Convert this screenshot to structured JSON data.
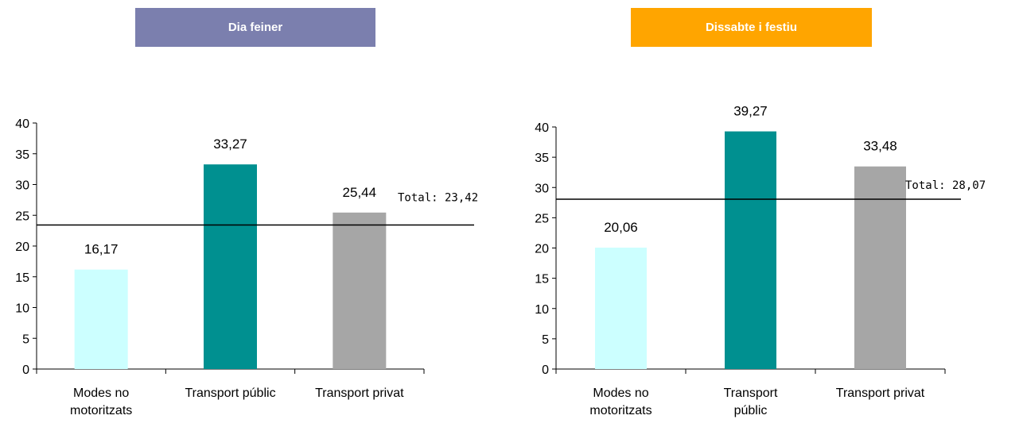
{
  "chart_data": [
    {
      "type": "bar",
      "title": "Dia feiner",
      "title_color": "#7b7fae",
      "categories": [
        "Modes no motoritzats",
        "Transport públic",
        "Transport privat"
      ],
      "category_lines": [
        [
          "Modes no",
          "motoritzats"
        ],
        [
          "Transport públic"
        ],
        [
          "Transport privat"
        ]
      ],
      "values": [
        16.17,
        33.27,
        25.44
      ],
      "data_labels": [
        "16,17",
        "33,27",
        "25,44"
      ],
      "colors": [
        "#ccffff",
        "#009090",
        "#a6a6a6"
      ],
      "ylim": [
        0,
        40
      ],
      "yticks": [
        "0",
        "5",
        "10",
        "15",
        "20",
        "25",
        "30",
        "35",
        "40"
      ],
      "reference_line": {
        "value": 23.42,
        "label": "Total: 23,42"
      },
      "grid": false,
      "legend": "none"
    },
    {
      "type": "bar",
      "title": "Dissabte i festiu",
      "title_color": "#ffa500",
      "categories": [
        "Modes no motoritzats",
        "Transport públic",
        "Transport privat"
      ],
      "category_lines": [
        [
          "Modes no",
          "motoritzats"
        ],
        [
          "Transport",
          "públic"
        ],
        [
          "Transport privat"
        ]
      ],
      "values": [
        20.06,
        39.27,
        33.48
      ],
      "data_labels": [
        "20,06",
        "39,27",
        "33,48"
      ],
      "colors": [
        "#ccffff",
        "#009090",
        "#a6a6a6"
      ],
      "ylim": [
        0,
        40
      ],
      "yticks": [
        "0",
        "5",
        "10",
        "15",
        "20",
        "25",
        "30",
        "35",
        "40"
      ],
      "reference_line": {
        "value": 28.07,
        "label": "Total: 28,07"
      },
      "grid": false,
      "legend": "none"
    }
  ]
}
